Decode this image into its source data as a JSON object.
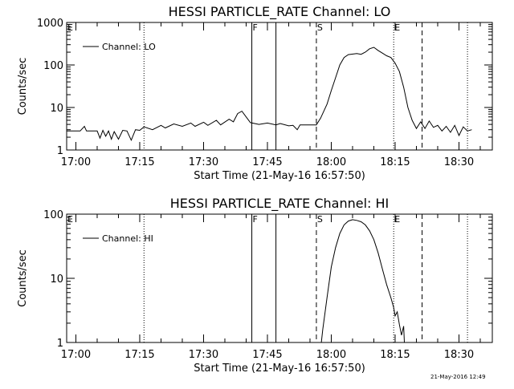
{
  "timestamp": "21-May-2016 12:49",
  "chart_data": [
    {
      "type": "line",
      "title": "HESSI PARTICLE_RATE Channel: LO",
      "xlabel": "Start Time (21-May-16 16:57:50)",
      "ylabel": "Counts/sec",
      "yscale": "log",
      "xlim": [
        "16:57:50",
        "18:37:50"
      ],
      "ylim": [
        1,
        1000
      ],
      "xticks": [
        "17:00",
        "17:15",
        "17:30",
        "17:45",
        "18:00",
        "18:15",
        "18:30"
      ],
      "yticks": [
        "1",
        "10",
        "100",
        "1000"
      ],
      "legend": {
        "label": "Channel: LO",
        "position": "top-left"
      },
      "grid": false,
      "markers": [
        {
          "label": "E",
          "time": "16:57:50",
          "style": "dotted"
        },
        {
          "label": "",
          "time": "17:16:00",
          "style": "dotted"
        },
        {
          "label": "F",
          "time": "17:41:20",
          "style": "solid"
        },
        {
          "label": "",
          "time": "17:47:00",
          "style": "solid"
        },
        {
          "label": "S",
          "time": "17:56:30",
          "style": "dashed"
        },
        {
          "label": "E",
          "time": "18:14:40",
          "style": "dotted"
        },
        {
          "label": "",
          "time": "18:21:20",
          "style": "dashed"
        },
        {
          "label": "",
          "time": "18:32:00",
          "style": "dotted"
        }
      ],
      "series": [
        {
          "name": "Channel: LO",
          "points": [
            [
              "16:57:50",
              2.8
            ],
            [
              "17:01:00",
              2.8
            ],
            [
              "17:02:00",
              3.6
            ],
            [
              "17:02:30",
              2.8
            ],
            [
              "17:05:00",
              2.8
            ],
            [
              "17:05:40",
              1.9
            ],
            [
              "17:06:20",
              2.9
            ],
            [
              "17:07:00",
              2.1
            ],
            [
              "17:07:40",
              2.8
            ],
            [
              "17:08:20",
              1.8
            ],
            [
              "17:09:00",
              2.7
            ],
            [
              "17:10:00",
              1.8
            ],
            [
              "17:11:00",
              2.9
            ],
            [
              "17:12:00",
              2.8
            ],
            [
              "17:13:00",
              1.7
            ],
            [
              "17:14:00",
              3.0
            ],
            [
              "17:15:00",
              2.9
            ],
            [
              "17:16:00",
              3.5
            ],
            [
              "17:18:00",
              3.0
            ],
            [
              "17:20:00",
              3.8
            ],
            [
              "17:21:00",
              3.3
            ],
            [
              "17:23:00",
              4.1
            ],
            [
              "17:25:00",
              3.6
            ],
            [
              "17:27:00",
              4.3
            ],
            [
              "17:28:00",
              3.6
            ],
            [
              "17:30:00",
              4.5
            ],
            [
              "17:31:00",
              3.8
            ],
            [
              "17:33:00",
              5.0
            ],
            [
              "17:34:00",
              3.9
            ],
            [
              "17:36:00",
              5.3
            ],
            [
              "17:37:00",
              4.6
            ],
            [
              "17:38:00",
              7.2
            ],
            [
              "17:39:00",
              8.2
            ],
            [
              "17:40:00",
              6.0
            ],
            [
              "17:41:00",
              4.4
            ],
            [
              "17:43:00",
              4.0
            ],
            [
              "17:45:00",
              4.3
            ],
            [
              "17:47:00",
              3.9
            ],
            [
              "17:48:00",
              4.2
            ],
            [
              "17:50:00",
              3.7
            ],
            [
              "17:51:00",
              3.8
            ],
            [
              "17:52:00",
              3.0
            ],
            [
              "17:52:40",
              3.9
            ],
            [
              "17:56:30",
              3.9
            ],
            [
              "17:57:30",
              5.6
            ],
            [
              "17:59:00",
              12.0
            ],
            [
              "18:00:00",
              25.0
            ],
            [
              "18:01:00",
              50.0
            ],
            [
              "18:02:00",
              100.0
            ],
            [
              "18:03:00",
              150.0
            ],
            [
              "18:04:00",
              175.0
            ],
            [
              "18:06:00",
              185.0
            ],
            [
              "18:07:00",
              178.0
            ],
            [
              "18:08:00",
              200.0
            ],
            [
              "18:09:00",
              240.0
            ],
            [
              "18:10:00",
              260.0
            ],
            [
              "18:11:00",
              220.0
            ],
            [
              "18:12:00",
              190.0
            ],
            [
              "18:13:00",
              165.0
            ],
            [
              "18:14:00",
              150.0
            ],
            [
              "18:15:00",
              110.0
            ],
            [
              "18:16:00",
              70.0
            ],
            [
              "18:17:00",
              30.0
            ],
            [
              "18:18:00",
              10.0
            ],
            [
              "18:19:00",
              5.0
            ],
            [
              "18:20:00",
              3.2
            ],
            [
              "18:21:00",
              4.6
            ],
            [
              "18:22:00",
              3.2
            ],
            [
              "18:23:00",
              4.8
            ],
            [
              "18:24:00",
              3.4
            ],
            [
              "18:25:00",
              3.8
            ],
            [
              "18:26:00",
              2.8
            ],
            [
              "18:27:00",
              3.6
            ],
            [
              "18:28:00",
              2.6
            ],
            [
              "18:29:00",
              3.8
            ],
            [
              "18:30:00",
              2.2
            ],
            [
              "18:31:00",
              3.5
            ],
            [
              "18:32:00",
              2.8
            ],
            [
              "18:33:00",
              3.0
            ]
          ]
        }
      ]
    },
    {
      "type": "line",
      "title": "HESSI PARTICLE_RATE Channel: HI",
      "xlabel": "Start Time (21-May-16 16:57:50)",
      "ylabel": "Counts/sec",
      "yscale": "log",
      "xlim": [
        "16:57:50",
        "18:37:50"
      ],
      "ylim": [
        1,
        100
      ],
      "xticks": [
        "17:00",
        "17:15",
        "17:30",
        "17:45",
        "18:00",
        "18:15",
        "18:30"
      ],
      "yticks": [
        "1",
        "10",
        "100"
      ],
      "legend": {
        "label": "Channel: HI",
        "position": "top-left"
      },
      "grid": false,
      "markers": [
        {
          "label": "E",
          "time": "16:57:50",
          "style": "dotted"
        },
        {
          "label": "",
          "time": "17:16:00",
          "style": "dotted"
        },
        {
          "label": "F",
          "time": "17:41:20",
          "style": "solid"
        },
        {
          "label": "",
          "time": "17:47:00",
          "style": "solid"
        },
        {
          "label": "S",
          "time": "17:56:30",
          "style": "dashed"
        },
        {
          "label": "E",
          "time": "18:14:40",
          "style": "dotted"
        },
        {
          "label": "",
          "time": "18:21:20",
          "style": "dashed"
        },
        {
          "label": "",
          "time": "18:32:00",
          "style": "dotted"
        }
      ],
      "series": [
        {
          "name": "Channel: HI",
          "points": [
            [
              "17:57:40",
              1.0
            ],
            [
              "17:58:00",
              1.6
            ],
            [
              "17:59:00",
              5.0
            ],
            [
              "18:00:00",
              15.0
            ],
            [
              "18:01:00",
              30.0
            ],
            [
              "18:02:00",
              50.0
            ],
            [
              "18:03:00",
              68.0
            ],
            [
              "18:04:00",
              78.0
            ],
            [
              "18:05:00",
              82.0
            ],
            [
              "18:06:00",
              80.0
            ],
            [
              "18:07:00",
              76.0
            ],
            [
              "18:08:00",
              68.0
            ],
            [
              "18:09:00",
              55.0
            ],
            [
              "18:10:00",
              40.0
            ],
            [
              "18:11:00",
              25.0
            ],
            [
              "18:12:00",
              14.0
            ],
            [
              "18:13:00",
              8.0
            ],
            [
              "18:14:00",
              5.0
            ],
            [
              "18:14:40",
              3.5
            ],
            [
              "18:15:00",
              2.6
            ],
            [
              "18:15:30",
              3.0
            ],
            [
              "18:16:00",
              1.9
            ],
            [
              "18:16:30",
              1.3
            ],
            [
              "18:17:00",
              1.8
            ],
            [
              "18:17:10",
              1.0
            ]
          ]
        }
      ]
    }
  ]
}
